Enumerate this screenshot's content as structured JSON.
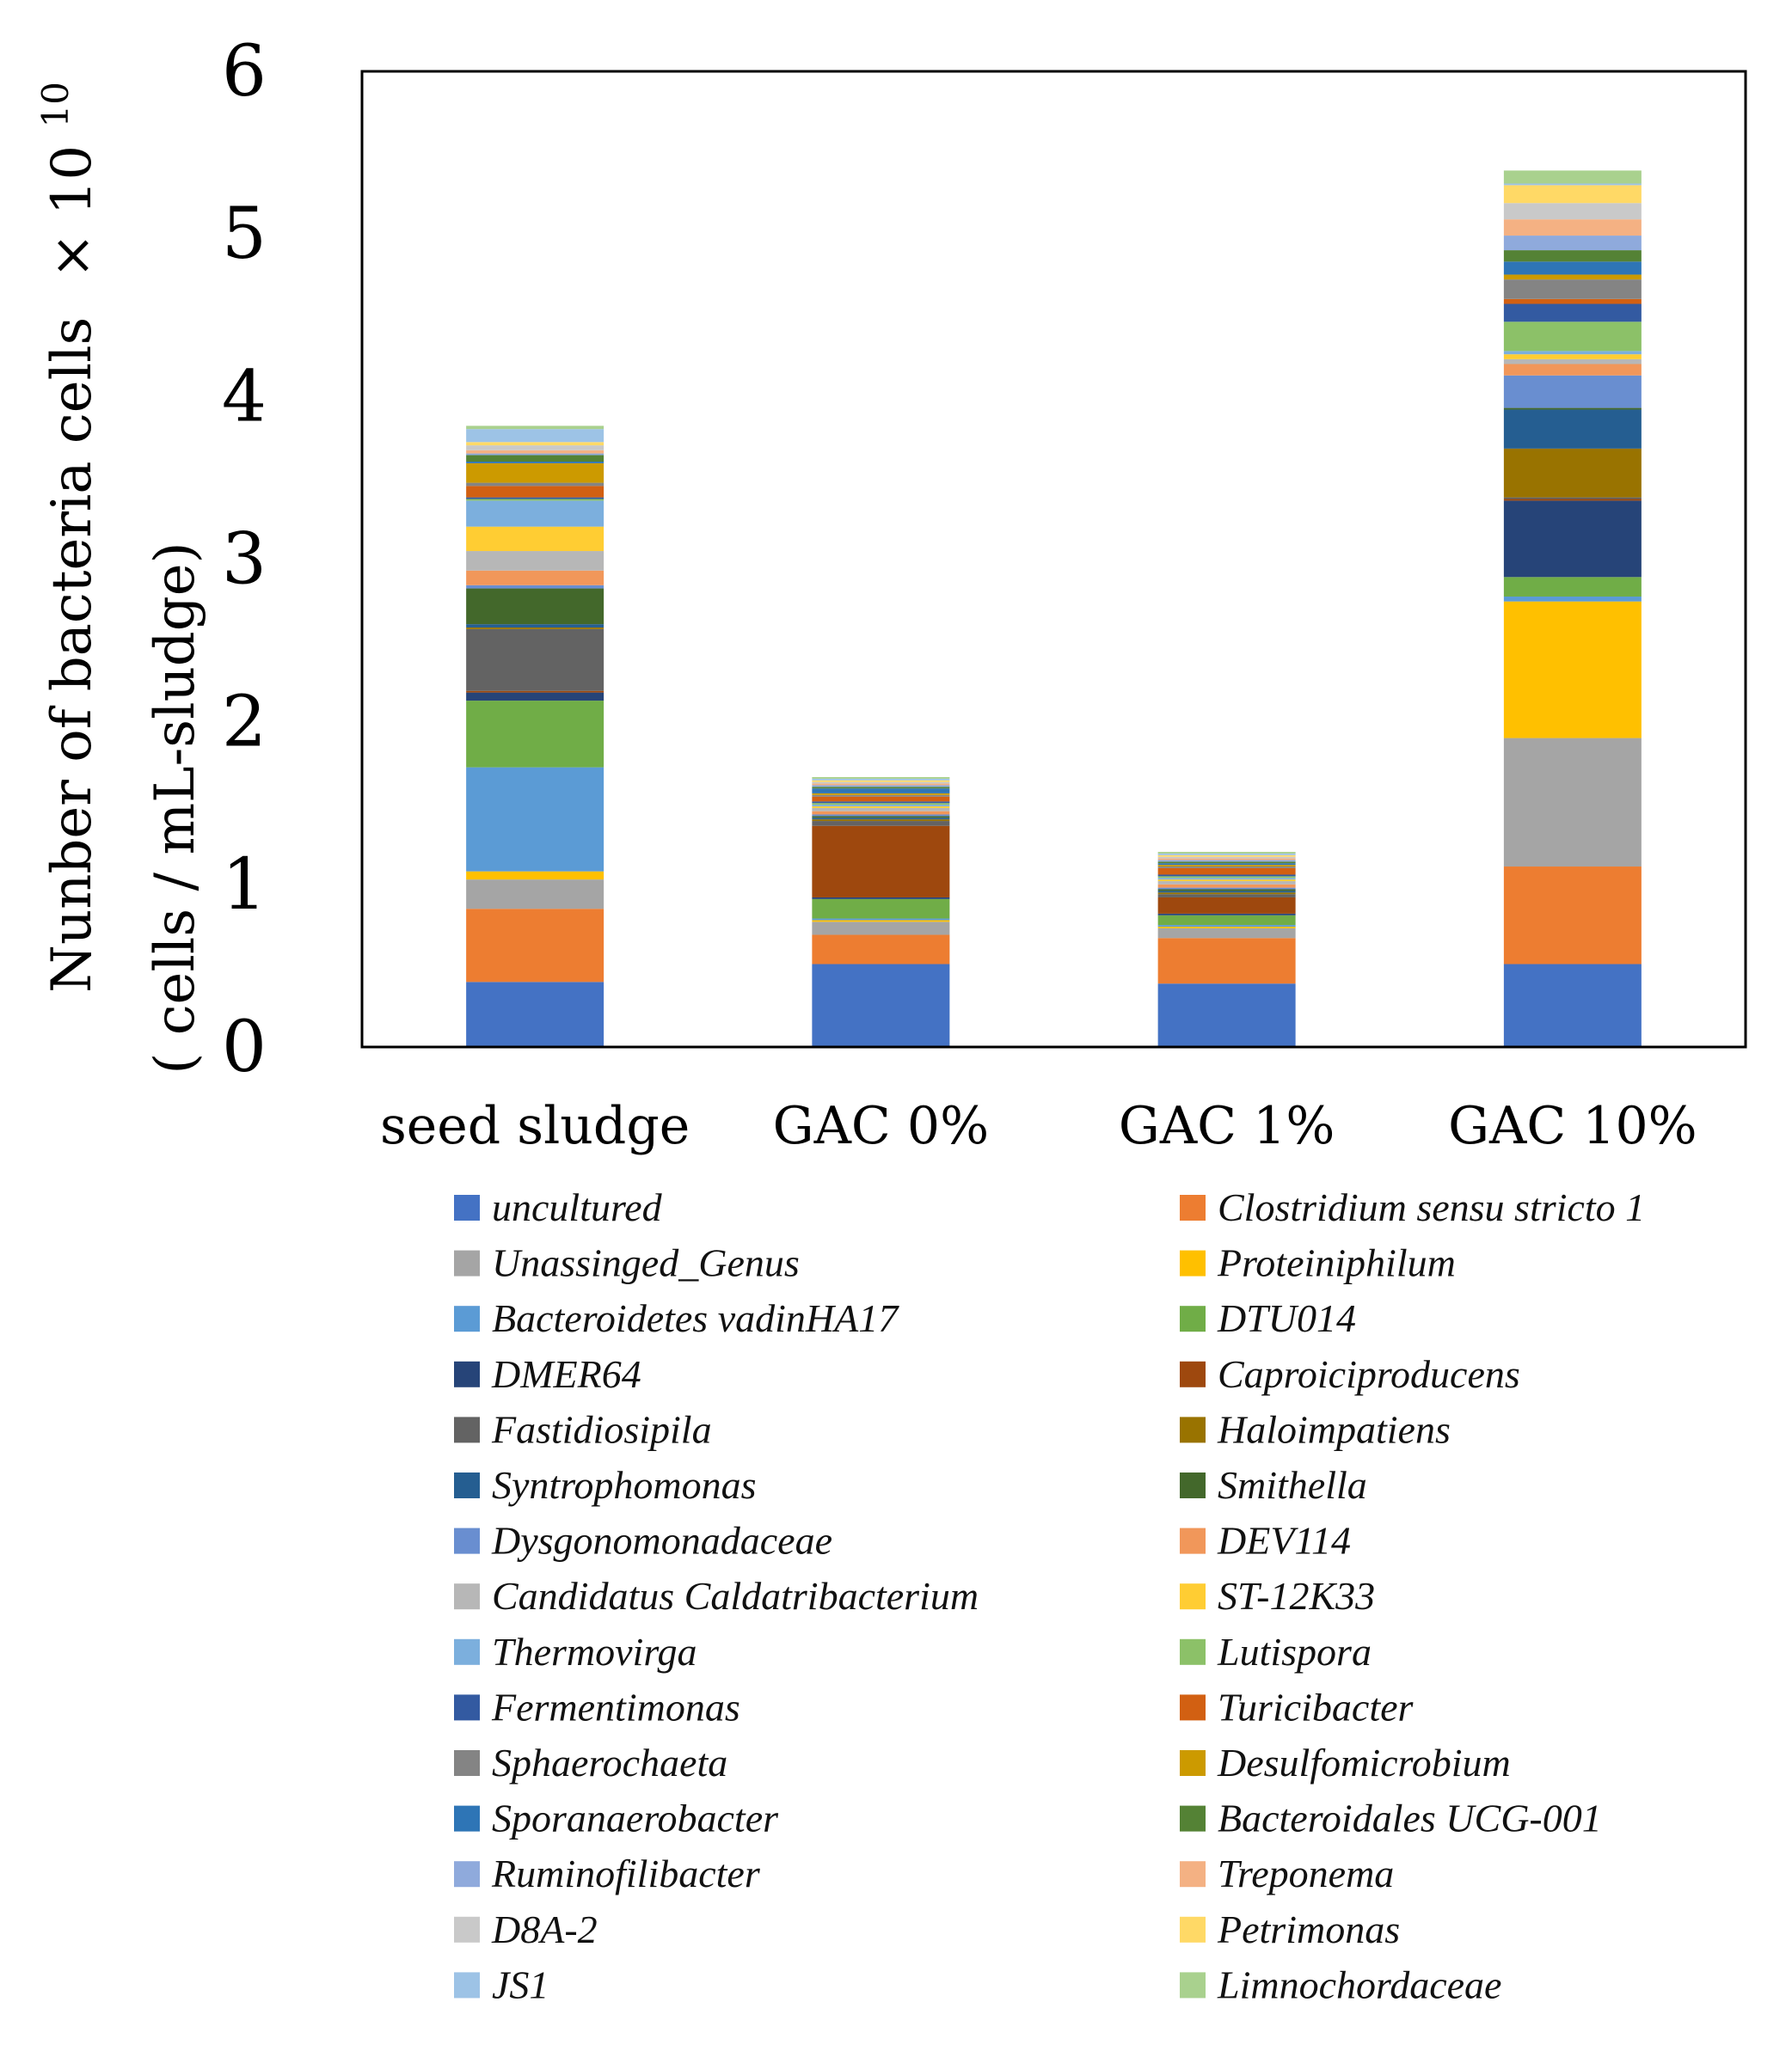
{
  "chart_data": {
    "type": "bar",
    "stacked": true,
    "title": "",
    "ylabel_line1": "Nunber of bacteria cells",
    "ylabel_multiplier": "× 10",
    "ylabel_exponent": "10",
    "ylabel_line2": "( cells / mL-sludge)",
    "xlabel": "",
    "ylim": [
      0,
      6
    ],
    "yticks": [
      "0",
      "1",
      "2",
      "3",
      "4",
      "5",
      "6"
    ],
    "categories": [
      "seed sludge",
      "GAC 0%",
      "GAC 1%",
      "GAC 10%"
    ],
    "series": [
      {
        "name": "uncultured",
        "color": "#4472C4",
        "values": [
          0.4,
          0.51,
          0.39,
          0.51
        ]
      },
      {
        "name": "Clostridium sensu stricto 1",
        "color": "#ED7D31",
        "values": [
          0.45,
          0.18,
          0.28,
          0.6
        ]
      },
      {
        "name": "Unassinged_Genus",
        "color": "#A5A5A5",
        "values": [
          0.18,
          0.08,
          0.06,
          0.79
        ]
      },
      {
        "name": "Proteiniphilum",
        "color": "#FFC000",
        "values": [
          0.05,
          0.01,
          0.01,
          0.84
        ]
      },
      {
        "name": "Bacteroidetes vadinHA17",
        "color": "#5B9BD5",
        "values": [
          0.64,
          0.01,
          0.01,
          0.03
        ]
      },
      {
        "name": "DTU014",
        "color": "#70AD47",
        "values": [
          0.41,
          0.12,
          0.06,
          0.12
        ]
      },
      {
        "name": "DMER64",
        "color": "#264478",
        "values": [
          0.05,
          0.01,
          0.01,
          0.47
        ]
      },
      {
        "name": "Caproiciproducens",
        "color": "#9E480E",
        "values": [
          0.01,
          0.44,
          0.1,
          0.01
        ]
      },
      {
        "name": "Fastidiosipila",
        "color": "#636363",
        "values": [
          0.38,
          0.03,
          0.02,
          0.01
        ]
      },
      {
        "name": "Haloimpatiens",
        "color": "#997300",
        "values": [
          0.01,
          0.01,
          0.01,
          0.3
        ]
      },
      {
        "name": "Syntrophomonas",
        "color": "#255E91",
        "values": [
          0.02,
          0.01,
          0.01,
          0.24
        ]
      },
      {
        "name": "Smithella",
        "color": "#43682B",
        "values": [
          0.22,
          0.01,
          0.01,
          0.01
        ]
      },
      {
        "name": "Dysgonomonadaceae",
        "color": "#698ED0",
        "values": [
          0.02,
          0.01,
          0.01,
          0.2
        ]
      },
      {
        "name": "DEV114",
        "color": "#F1975A",
        "values": [
          0.09,
          0.02,
          0.02,
          0.07
        ]
      },
      {
        "name": "Candidatus Caldatribacterium",
        "color": "#B7B7B7",
        "values": [
          0.12,
          0.02,
          0.02,
          0.03
        ]
      },
      {
        "name": "ST-12K33",
        "color": "#FFCD33",
        "values": [
          0.15,
          0.01,
          0.01,
          0.03
        ]
      },
      {
        "name": "Thermovirga",
        "color": "#7CAFDD",
        "values": [
          0.16,
          0.01,
          0.01,
          0.02
        ]
      },
      {
        "name": "Lutispora",
        "color": "#8CC168",
        "values": [
          0.01,
          0.01,
          0.01,
          0.18
        ]
      },
      {
        "name": "Fermentimonas",
        "color": "#335AA1",
        "values": [
          0.01,
          0.01,
          0.01,
          0.11
        ]
      },
      {
        "name": "Turicibacter",
        "color": "#D26012",
        "values": [
          0.07,
          0.03,
          0.04,
          0.03
        ]
      },
      {
        "name": "Sphaerochaeta",
        "color": "#848484",
        "values": [
          0.02,
          0.01,
          0.01,
          0.12
        ]
      },
      {
        "name": "Desulfomicrobium",
        "color": "#CC9A00",
        "values": [
          0.12,
          0.01,
          0.01,
          0.03
        ]
      },
      {
        "name": "Sporanaerobacter",
        "color": "#2E75B6",
        "values": [
          0.01,
          0.03,
          0.01,
          0.08
        ]
      },
      {
        "name": "Bacteroidales UCG-001",
        "color": "#548235",
        "values": [
          0.04,
          0.01,
          0.01,
          0.07
        ]
      },
      {
        "name": "Ruminofilibacter",
        "color": "#8FAADC",
        "values": [
          0.01,
          0.01,
          0.01,
          0.09
        ]
      },
      {
        "name": "Treponema",
        "color": "#F4B183",
        "values": [
          0.02,
          0.01,
          0.01,
          0.1
        ]
      },
      {
        "name": "D8A-2",
        "color": "#C9C9C9",
        "values": [
          0.03,
          0.01,
          0.01,
          0.1
        ]
      },
      {
        "name": "Petrimonas",
        "color": "#FFD966",
        "values": [
          0.02,
          0.01,
          0.01,
          0.11
        ]
      },
      {
        "name": "JS1",
        "color": "#9DC3E6",
        "values": [
          0.08,
          0.01,
          0.01,
          0.01
        ]
      },
      {
        "name": "Limnochordaceae",
        "color": "#A9D18E",
        "values": [
          0.02,
          0.01,
          0.01,
          0.08
        ]
      }
    ]
  }
}
